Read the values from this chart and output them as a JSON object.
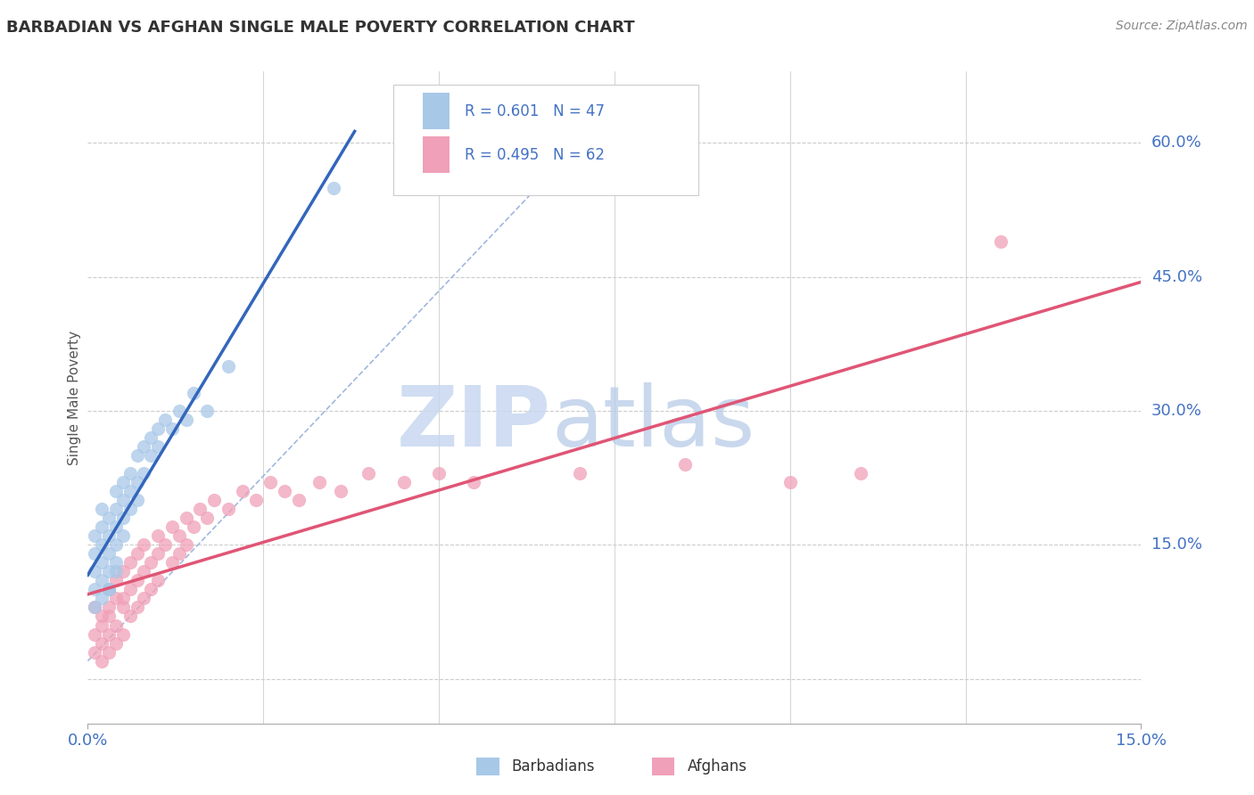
{
  "title": "BARBADIAN VS AFGHAN SINGLE MALE POVERTY CORRELATION CHART",
  "source_text": "Source: ZipAtlas.com",
  "xmin": 0.0,
  "xmax": 0.15,
  "ymin": -0.05,
  "ymax": 0.68,
  "yticks": [
    0.0,
    0.15,
    0.3,
    0.45,
    0.6
  ],
  "ylabel_labels": [
    "",
    "15.0%",
    "30.0%",
    "45.0%",
    "60.0%"
  ],
  "barbadian_R": 0.601,
  "barbadian_N": 47,
  "afghan_R": 0.495,
  "afghan_N": 62,
  "blue_dot_color": "#a8c8e8",
  "pink_dot_color": "#f0a0b8",
  "blue_line_color": "#3366bb",
  "pink_line_color": "#e05575",
  "diag_line_color": "#a0b8e0",
  "axis_label_color": "#4472c4",
  "grid_color": "#cccccc",
  "watermark_zip_color": "#c8d8f0",
  "watermark_atlas_color": "#b8cce8",
  "title_color": "#333333",
  "source_color": "#888888",
  "barbadian_x": [
    0.001,
    0.001,
    0.001,
    0.002,
    0.002,
    0.002,
    0.002,
    0.003,
    0.003,
    0.003,
    0.003,
    0.003,
    0.004,
    0.004,
    0.004,
    0.004,
    0.004,
    0.005,
    0.005,
    0.005,
    0.005,
    0.006,
    0.006,
    0.006,
    0.007,
    0.007,
    0.007,
    0.008,
    0.008,
    0.009,
    0.009,
    0.01,
    0.01,
    0.011,
    0.012,
    0.013,
    0.014,
    0.015,
    0.017,
    0.02,
    0.001,
    0.001,
    0.002,
    0.002,
    0.003,
    0.004,
    0.035
  ],
  "barbadian_y": [
    0.12,
    0.14,
    0.16,
    0.13,
    0.15,
    0.17,
    0.19,
    0.14,
    0.16,
    0.18,
    0.1,
    0.12,
    0.15,
    0.17,
    0.19,
    0.21,
    0.13,
    0.16,
    0.18,
    0.2,
    0.22,
    0.19,
    0.21,
    0.23,
    0.2,
    0.22,
    0.25,
    0.23,
    0.26,
    0.25,
    0.27,
    0.26,
    0.28,
    0.29,
    0.28,
    0.3,
    0.29,
    0.32,
    0.3,
    0.35,
    0.08,
    0.1,
    0.09,
    0.11,
    0.1,
    0.12,
    0.55
  ],
  "afghan_x": [
    0.001,
    0.001,
    0.001,
    0.002,
    0.002,
    0.002,
    0.002,
    0.003,
    0.003,
    0.003,
    0.003,
    0.003,
    0.004,
    0.004,
    0.004,
    0.004,
    0.005,
    0.005,
    0.005,
    0.005,
    0.006,
    0.006,
    0.006,
    0.007,
    0.007,
    0.007,
    0.008,
    0.008,
    0.008,
    0.009,
    0.009,
    0.01,
    0.01,
    0.01,
    0.011,
    0.012,
    0.012,
    0.013,
    0.013,
    0.014,
    0.014,
    0.015,
    0.016,
    0.017,
    0.018,
    0.02,
    0.022,
    0.024,
    0.026,
    0.028,
    0.03,
    0.033,
    0.036,
    0.04,
    0.045,
    0.05,
    0.055,
    0.07,
    0.085,
    0.1,
    0.11,
    0.13
  ],
  "afghan_y": [
    0.08,
    0.05,
    0.03,
    0.07,
    0.04,
    0.02,
    0.06,
    0.08,
    0.05,
    0.03,
    0.1,
    0.07,
    0.06,
    0.09,
    0.04,
    0.11,
    0.08,
    0.05,
    0.12,
    0.09,
    0.1,
    0.07,
    0.13,
    0.11,
    0.08,
    0.14,
    0.12,
    0.09,
    0.15,
    0.13,
    0.1,
    0.14,
    0.11,
    0.16,
    0.15,
    0.13,
    0.17,
    0.16,
    0.14,
    0.18,
    0.15,
    0.17,
    0.19,
    0.18,
    0.2,
    0.19,
    0.21,
    0.2,
    0.22,
    0.21,
    0.2,
    0.22,
    0.21,
    0.23,
    0.22,
    0.23,
    0.22,
    0.23,
    0.24,
    0.22,
    0.23,
    0.49
  ]
}
